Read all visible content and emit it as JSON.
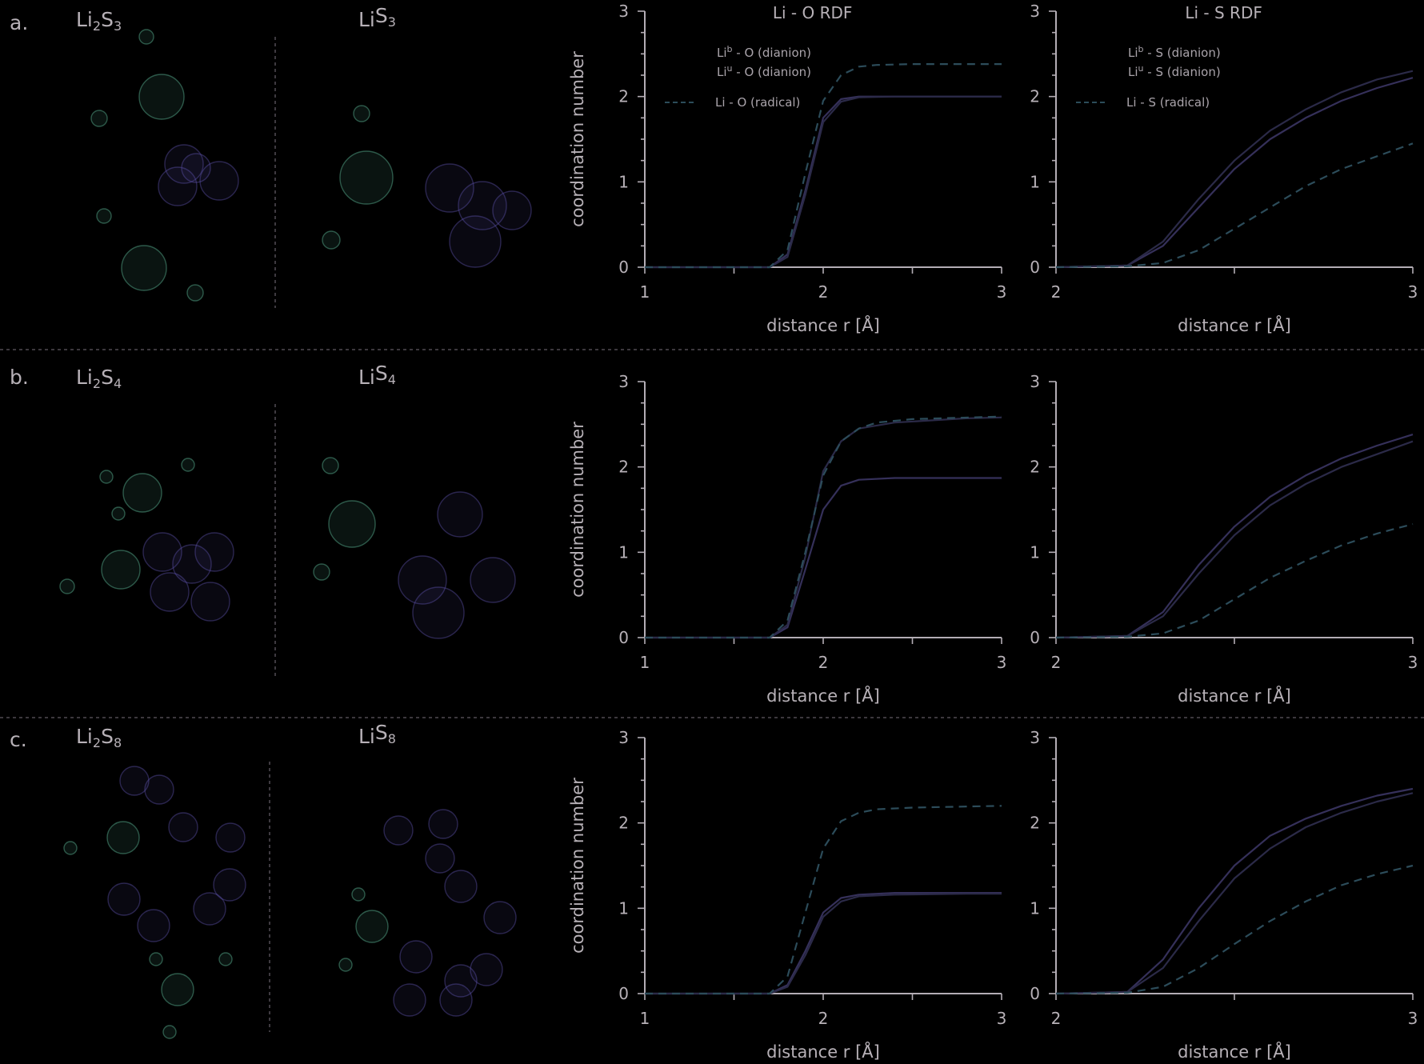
{
  "figure": {
    "background": "#000000",
    "text_color": "#b7b1b7",
    "colors": {
      "li_atom": "#4f9a80",
      "s_atom": "#5a4fa6",
      "dianion_bridging": "#35305a",
      "dianion_unbridged": "#2b2a48",
      "radical": "#2c4c5a"
    },
    "rows": [
      {
        "panel": "a.",
        "left_molecule": {
          "base": "Li",
          "sub1": "2",
          "mid": "S",
          "sub2": "3"
        },
        "right_molecule": {
          "base": "Li",
          "sub1": "",
          "mid": "S",
          "sub2": "3"
        }
      },
      {
        "panel": "b.",
        "left_molecule": {
          "base": "Li",
          "sub1": "2",
          "mid": "S",
          "sub2": "4"
        },
        "right_molecule": {
          "base": "Li",
          "sub1": "",
          "mid": "S",
          "sub2": "4"
        }
      },
      {
        "panel": "c.",
        "left_molecule": {
          "base": "Li",
          "sub1": "2",
          "mid": "S",
          "sub2": "8"
        },
        "right_molecule": {
          "base": "Li",
          "sub1": "",
          "mid": "S",
          "sub2": "8"
        }
      }
    ]
  },
  "chart_data": [
    {
      "type": "line",
      "panel": "a.",
      "title": "Li - O RDF",
      "xlabel": "distance r [Å]",
      "ylabel": "coordination number",
      "xlim": [
        1,
        3
      ],
      "ylim": [
        0,
        3
      ],
      "xticks": [
        1,
        2,
        3
      ],
      "yticks": [
        0,
        1,
        2,
        3
      ],
      "legend": [
        {
          "pre": "Li",
          "sup": "b",
          "post": " - O (dianion)"
        },
        {
          "pre": "Li",
          "sup": "u",
          "post": " - O (dianion)"
        },
        {
          "pre": "",
          "sup": "",
          "post": "Li - O (radical)"
        }
      ],
      "series": [
        {
          "key": "bridging",
          "style": "solid",
          "x": [
            1.0,
            1.7,
            1.8,
            1.9,
            2.0,
            2.1,
            2.2,
            2.4,
            2.8,
            3.0
          ],
          "y": [
            0,
            0,
            0.15,
            0.9,
            1.75,
            1.97,
            2.0,
            2.0,
            2.0,
            2.0
          ]
        },
        {
          "key": "unbridged",
          "style": "solid",
          "x": [
            1.0,
            1.7,
            1.8,
            1.9,
            2.0,
            2.1,
            2.2,
            2.4,
            2.8,
            3.0
          ],
          "y": [
            0,
            0,
            0.12,
            0.85,
            1.7,
            1.94,
            1.99,
            2.0,
            2.0,
            2.0
          ]
        },
        {
          "key": "radical",
          "style": "dashed",
          "x": [
            1.0,
            1.7,
            1.8,
            1.9,
            2.0,
            2.1,
            2.2,
            2.3,
            2.5,
            3.0
          ],
          "y": [
            0,
            0,
            0.2,
            1.1,
            1.95,
            2.25,
            2.35,
            2.37,
            2.38,
            2.38
          ]
        }
      ]
    },
    {
      "type": "line",
      "panel": "a.",
      "title": "Li - S RDF",
      "xlabel": "distance r [Å]",
      "ylabel": "",
      "xlim": [
        2,
        3
      ],
      "ylim": [
        0,
        3
      ],
      "xticks": [
        2,
        3
      ],
      "yticks": [
        0,
        1,
        2,
        3
      ],
      "legend": [
        {
          "pre": "Li",
          "sup": "b",
          "post": " - S (dianion)"
        },
        {
          "pre": "Li",
          "sup": "u",
          "post": " - S (dianion)"
        },
        {
          "pre": "",
          "sup": "",
          "post": "Li - S (radical)"
        }
      ],
      "series": [
        {
          "key": "bridging",
          "style": "solid",
          "x": [
            2.0,
            2.2,
            2.3,
            2.4,
            2.5,
            2.6,
            2.7,
            2.8,
            2.9,
            3.0
          ],
          "y": [
            0,
            0.02,
            0.25,
            0.7,
            1.15,
            1.5,
            1.75,
            1.95,
            2.1,
            2.22
          ]
        },
        {
          "key": "unbridged",
          "style": "solid",
          "x": [
            2.0,
            2.2,
            2.3,
            2.4,
            2.5,
            2.6,
            2.7,
            2.8,
            2.9,
            3.0
          ],
          "y": [
            0,
            0.02,
            0.3,
            0.8,
            1.25,
            1.6,
            1.85,
            2.05,
            2.2,
            2.3
          ]
        },
        {
          "key": "radical",
          "style": "dashed",
          "x": [
            2.0,
            2.2,
            2.3,
            2.4,
            2.5,
            2.6,
            2.7,
            2.8,
            2.9,
            3.0
          ],
          "y": [
            0,
            0.01,
            0.05,
            0.2,
            0.45,
            0.7,
            0.95,
            1.15,
            1.3,
            1.45
          ]
        }
      ]
    },
    {
      "type": "line",
      "panel": "b.",
      "title": "",
      "xlabel": "distance r [Å]",
      "ylabel": "coordination number",
      "xlim": [
        1,
        3
      ],
      "ylim": [
        0,
        3
      ],
      "xticks": [
        1,
        2,
        3
      ],
      "yticks": [
        0,
        1,
        2,
        3
      ],
      "series": [
        {
          "key": "bridging",
          "style": "solid",
          "x": [
            1.0,
            1.7,
            1.8,
            1.9,
            2.0,
            2.1,
            2.2,
            2.4,
            2.8,
            3.0
          ],
          "y": [
            0,
            0,
            0.12,
            0.8,
            1.5,
            1.78,
            1.85,
            1.87,
            1.87,
            1.87
          ]
        },
        {
          "key": "unbridged",
          "style": "solid",
          "x": [
            1.0,
            1.7,
            1.8,
            1.9,
            2.0,
            2.1,
            2.2,
            2.4,
            2.8,
            3.0
          ],
          "y": [
            0,
            0,
            0.15,
            0.95,
            1.95,
            2.3,
            2.45,
            2.52,
            2.57,
            2.58
          ]
        },
        {
          "key": "radical",
          "style": "dashed",
          "x": [
            1.0,
            1.7,
            1.8,
            1.9,
            2.0,
            2.1,
            2.2,
            2.3,
            2.5,
            3.0
          ],
          "y": [
            0,
            0,
            0.2,
            1.0,
            1.9,
            2.3,
            2.45,
            2.52,
            2.56,
            2.59
          ]
        }
      ]
    },
    {
      "type": "line",
      "panel": "b.",
      "title": "",
      "xlabel": "distance r [Å]",
      "ylabel": "",
      "xlim": [
        2,
        3
      ],
      "ylim": [
        0,
        3
      ],
      "xticks": [
        2,
        3
      ],
      "yticks": [
        0,
        1,
        2,
        3
      ],
      "series": [
        {
          "key": "bridging",
          "style": "solid",
          "x": [
            2.0,
            2.2,
            2.3,
            2.4,
            2.5,
            2.6,
            2.7,
            2.8,
            2.9,
            3.0
          ],
          "y": [
            0,
            0.02,
            0.3,
            0.85,
            1.3,
            1.65,
            1.9,
            2.1,
            2.25,
            2.38
          ]
        },
        {
          "key": "unbridged",
          "style": "solid",
          "x": [
            2.0,
            2.2,
            2.3,
            2.4,
            2.5,
            2.6,
            2.7,
            2.8,
            2.9,
            3.0
          ],
          "y": [
            0,
            0.02,
            0.25,
            0.75,
            1.2,
            1.55,
            1.8,
            2.0,
            2.15,
            2.3
          ]
        },
        {
          "key": "radical",
          "style": "dashed",
          "x": [
            2.0,
            2.2,
            2.3,
            2.4,
            2.5,
            2.6,
            2.7,
            2.8,
            2.9,
            3.0
          ],
          "y": [
            0,
            0.01,
            0.05,
            0.2,
            0.45,
            0.7,
            0.9,
            1.08,
            1.22,
            1.33
          ]
        }
      ]
    },
    {
      "type": "line",
      "panel": "c.",
      "title": "",
      "xlabel": "distance r [Å]",
      "ylabel": "coordination number",
      "xlim": [
        1,
        3
      ],
      "ylim": [
        0,
        3
      ],
      "xticks": [
        1,
        2,
        3
      ],
      "yticks": [
        0,
        1,
        2,
        3
      ],
      "series": [
        {
          "key": "bridging",
          "style": "solid",
          "x": [
            1.0,
            1.7,
            1.8,
            1.9,
            2.0,
            2.1,
            2.2,
            2.4,
            2.8,
            3.0
          ],
          "y": [
            0,
            0,
            0.1,
            0.5,
            0.95,
            1.12,
            1.16,
            1.18,
            1.18,
            1.18
          ]
        },
        {
          "key": "unbridged",
          "style": "solid",
          "x": [
            1.0,
            1.7,
            1.8,
            1.9,
            2.0,
            2.1,
            2.2,
            2.4,
            2.8,
            3.0
          ],
          "y": [
            0,
            0,
            0.08,
            0.45,
            0.9,
            1.08,
            1.14,
            1.16,
            1.17,
            1.17
          ]
        },
        {
          "key": "radical",
          "style": "dashed",
          "x": [
            1.0,
            1.7,
            1.8,
            1.9,
            2.0,
            2.1,
            2.2,
            2.3,
            2.5,
            3.0
          ],
          "y": [
            0,
            0,
            0.2,
            0.95,
            1.7,
            2.02,
            2.12,
            2.16,
            2.18,
            2.2
          ]
        }
      ]
    },
    {
      "type": "line",
      "panel": "c.",
      "title": "",
      "xlabel": "distance r [Å]",
      "ylabel": "",
      "xlim": [
        2,
        3
      ],
      "ylim": [
        0,
        3
      ],
      "xticks": [
        2,
        3
      ],
      "yticks": [
        0,
        1,
        2,
        3
      ],
      "series": [
        {
          "key": "bridging",
          "style": "solid",
          "x": [
            2.0,
            2.2,
            2.3,
            2.4,
            2.5,
            2.6,
            2.7,
            2.8,
            2.9,
            3.0
          ],
          "y": [
            0,
            0.02,
            0.4,
            1.0,
            1.5,
            1.85,
            2.05,
            2.2,
            2.32,
            2.4
          ]
        },
        {
          "key": "unbridged",
          "style": "solid",
          "x": [
            2.0,
            2.2,
            2.3,
            2.4,
            2.5,
            2.6,
            2.7,
            2.8,
            2.9,
            3.0
          ],
          "y": [
            0,
            0.02,
            0.3,
            0.85,
            1.35,
            1.7,
            1.95,
            2.12,
            2.25,
            2.35
          ]
        },
        {
          "key": "radical",
          "style": "dashed",
          "x": [
            2.0,
            2.2,
            2.3,
            2.4,
            2.5,
            2.6,
            2.7,
            2.8,
            2.9,
            3.0
          ],
          "y": [
            0,
            0.01,
            0.08,
            0.3,
            0.58,
            0.85,
            1.08,
            1.27,
            1.4,
            1.5
          ]
        }
      ]
    }
  ]
}
